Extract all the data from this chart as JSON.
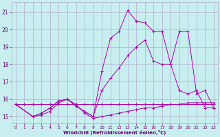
{
  "background_color": "#c8eef0",
  "grid_color": "#b0b0cc",
  "line_color": "#aa00aa",
  "xlabel": "Windchill (Refroidissement éolien,°C)",
  "xlabel_color": "#660066",
  "tick_color": "#660066",
  "xlim": [
    -0.5,
    23.5
  ],
  "ylim": [
    14.6,
    21.6
  ],
  "yticks": [
    15,
    16,
    17,
    18,
    19,
    20,
    21
  ],
  "xticks": [
    0,
    1,
    2,
    3,
    4,
    5,
    6,
    7,
    8,
    9,
    10,
    11,
    12,
    13,
    14,
    15,
    16,
    17,
    18,
    19,
    20,
    21,
    22,
    23
  ],
  "series": [
    {
      "x": [
        0,
        1,
        2,
        3,
        4,
        5,
        6,
        7,
        8,
        9,
        10,
        11,
        12,
        13,
        14,
        15,
        16,
        17,
        18,
        19,
        20,
        21,
        22,
        23
      ],
      "y": [
        15.7,
        15.7,
        15.7,
        15.7,
        15.7,
        15.7,
        15.7,
        15.7,
        15.7,
        15.7,
        15.7,
        15.7,
        15.7,
        15.7,
        15.7,
        15.7,
        15.7,
        15.7,
        15.7,
        15.7,
        15.7,
        15.7,
        15.7,
        15.7
      ]
    },
    {
      "x": [
        0,
        2,
        3,
        4,
        5,
        6,
        7,
        8,
        9,
        10,
        11,
        12,
        13,
        14,
        15,
        16,
        17,
        18,
        19,
        20,
        21,
        22,
        23
      ],
      "y": [
        15.7,
        15.0,
        15.1,
        15.3,
        15.8,
        16.0,
        15.7,
        15.2,
        14.9,
        15.0,
        15.1,
        15.2,
        15.3,
        15.4,
        15.5,
        15.5,
        15.6,
        15.7,
        15.7,
        15.8,
        15.8,
        15.8,
        15.8
      ]
    },
    {
      "x": [
        0,
        2,
        3,
        4,
        5,
        6,
        7,
        8,
        9,
        10,
        11,
        12,
        13,
        14,
        15,
        16,
        17,
        18,
        19,
        20,
        21,
        22,
        23
      ],
      "y": [
        15.7,
        15.0,
        15.2,
        15.5,
        15.9,
        16.0,
        15.6,
        15.3,
        15.0,
        16.5,
        17.2,
        17.8,
        18.5,
        19.0,
        19.4,
        18.2,
        18.0,
        18.0,
        16.5,
        16.3,
        16.5,
        15.5,
        15.5
      ]
    },
    {
      "x": [
        0,
        2,
        3,
        4,
        5,
        6,
        7,
        8,
        9,
        10,
        11,
        12,
        13,
        14,
        15,
        16,
        17,
        18,
        19,
        20,
        21,
        22,
        23
      ],
      "y": [
        15.7,
        15.0,
        15.2,
        15.5,
        15.9,
        16.0,
        15.6,
        15.3,
        15.0,
        17.6,
        19.5,
        19.9,
        21.1,
        20.5,
        20.4,
        19.9,
        19.9,
        18.0,
        19.9,
        19.9,
        16.3,
        16.5,
        15.5
      ]
    }
  ]
}
